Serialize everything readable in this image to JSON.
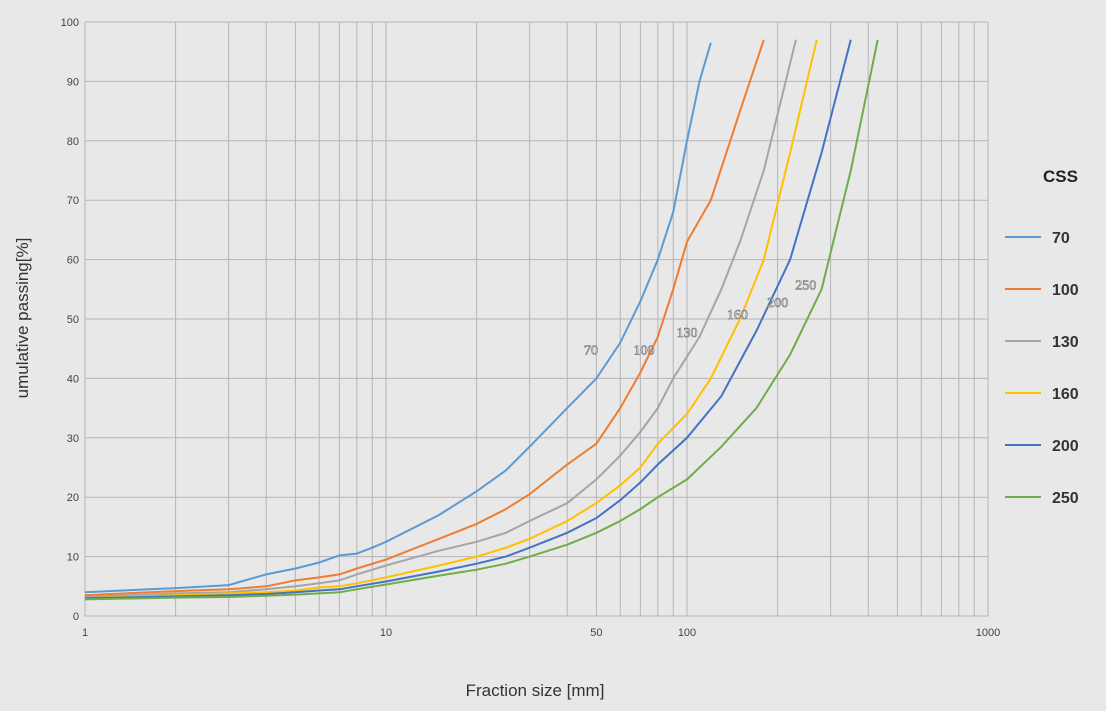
{
  "chart_data": {
    "type": "line",
    "title": "",
    "xlabel": "Fraction size  [mm]",
    "ylabel": "umulative passing[%]",
    "x_scale": "log",
    "xlim": [
      1,
      1000
    ],
    "ylim": [
      0,
      100
    ],
    "x_ticks": [
      {
        "value": 1,
        "label": "1"
      },
      {
        "value": 10,
        "label": "10"
      },
      {
        "value": 50,
        "label": "50"
      },
      {
        "value": 100,
        "label": "100"
      },
      {
        "value": 1000,
        "label": "1000"
      }
    ],
    "y_ticks": [
      "0",
      "10",
      "20",
      "30",
      "40",
      "50",
      "60",
      "70",
      "80",
      "90",
      "100"
    ],
    "grid": true,
    "legend": {
      "title": "CSS",
      "position": "right"
    },
    "series": [
      {
        "name": "70",
        "color": "#5b9bd5",
        "label_at": [
          48,
          44
        ],
        "points": [
          [
            1,
            4
          ],
          [
            2,
            4.7
          ],
          [
            3,
            5.2
          ],
          [
            4,
            7
          ],
          [
            5,
            8
          ],
          [
            6,
            9
          ],
          [
            7,
            10.2
          ],
          [
            8,
            10.5
          ],
          [
            9,
            11.5
          ],
          [
            10,
            12.5
          ],
          [
            15,
            17
          ],
          [
            20,
            21
          ],
          [
            25,
            24.5
          ],
          [
            30,
            28.5
          ],
          [
            40,
            35
          ],
          [
            50,
            40
          ],
          [
            60,
            46
          ],
          [
            70,
            53
          ],
          [
            80,
            60
          ],
          [
            90,
            68
          ],
          [
            100,
            80
          ],
          [
            110,
            90
          ],
          [
            120,
            96.5
          ]
        ]
      },
      {
        "name": "100",
        "color": "#ed7d31",
        "label_at": [
          72,
          44
        ],
        "points": [
          [
            1,
            3.5
          ],
          [
            2,
            4.2
          ],
          [
            3,
            4.5
          ],
          [
            4,
            5
          ],
          [
            5,
            6
          ],
          [
            6,
            6.5
          ],
          [
            7,
            7
          ],
          [
            8,
            8
          ],
          [
            10,
            9.5
          ],
          [
            15,
            13
          ],
          [
            20,
            15.5
          ],
          [
            25,
            18
          ],
          [
            30,
            20.5
          ],
          [
            40,
            25.5
          ],
          [
            50,
            29
          ],
          [
            60,
            35
          ],
          [
            70,
            41
          ],
          [
            80,
            47
          ],
          [
            90,
            55
          ],
          [
            100,
            63
          ],
          [
            120,
            70
          ],
          [
            150,
            85
          ],
          [
            180,
            97
          ]
        ]
      },
      {
        "name": "130",
        "color": "#a5a5a5",
        "label_at": [
          100,
          47
        ],
        "points": [
          [
            1,
            3.2
          ],
          [
            2,
            3.8
          ],
          [
            3,
            4
          ],
          [
            4,
            4.5
          ],
          [
            5,
            5
          ],
          [
            6,
            5.5
          ],
          [
            7,
            6
          ],
          [
            8,
            7
          ],
          [
            10,
            8.5
          ],
          [
            15,
            11
          ],
          [
            20,
            12.5
          ],
          [
            25,
            14
          ],
          [
            30,
            16
          ],
          [
            40,
            19
          ],
          [
            50,
            23
          ],
          [
            60,
            27
          ],
          [
            70,
            31
          ],
          [
            80,
            35
          ],
          [
            90,
            40
          ],
          [
            110,
            47
          ],
          [
            130,
            55
          ],
          [
            150,
            63
          ],
          [
            180,
            75
          ],
          [
            230,
            97
          ]
        ]
      },
      {
        "name": "160",
        "color": "#ffc000",
        "label_at": [
          147,
          50
        ],
        "points": [
          [
            1,
            3
          ],
          [
            2,
            3.5
          ],
          [
            3,
            3.8
          ],
          [
            4,
            4
          ],
          [
            5,
            4.3
          ],
          [
            6,
            4.8
          ],
          [
            7,
            5
          ],
          [
            8,
            5.5
          ],
          [
            10,
            6.5
          ],
          [
            15,
            8.5
          ],
          [
            20,
            10
          ],
          [
            25,
            11.5
          ],
          [
            30,
            13
          ],
          [
            40,
            16
          ],
          [
            50,
            19
          ],
          [
            60,
            22
          ],
          [
            70,
            25
          ],
          [
            80,
            29
          ],
          [
            100,
            34
          ],
          [
            120,
            40
          ],
          [
            150,
            50
          ],
          [
            180,
            60
          ],
          [
            220,
            78
          ],
          [
            270,
            97
          ]
        ]
      },
      {
        "name": "200",
        "color": "#4472c4",
        "label_at": [
          200,
          52
        ],
        "points": [
          [
            1,
            3
          ],
          [
            2,
            3.3
          ],
          [
            3,
            3.5
          ],
          [
            4,
            3.7
          ],
          [
            5,
            4
          ],
          [
            6,
            4.3
          ],
          [
            7,
            4.5
          ],
          [
            8,
            5
          ],
          [
            10,
            5.8
          ],
          [
            15,
            7.5
          ],
          [
            20,
            8.8
          ],
          [
            25,
            10
          ],
          [
            30,
            11.5
          ],
          [
            40,
            14
          ],
          [
            50,
            16.5
          ],
          [
            60,
            19.5
          ],
          [
            70,
            22.5
          ],
          [
            80,
            25.5
          ],
          [
            100,
            30
          ],
          [
            130,
            37
          ],
          [
            170,
            48
          ],
          [
            220,
            60
          ],
          [
            280,
            78
          ],
          [
            350,
            97
          ]
        ]
      },
      {
        "name": "250",
        "color": "#70ad47",
        "label_at": [
          248,
          55
        ],
        "points": [
          [
            1,
            2.8
          ],
          [
            2,
            3.1
          ],
          [
            3,
            3.2
          ],
          [
            4,
            3.4
          ],
          [
            5,
            3.6
          ],
          [
            6,
            3.8
          ],
          [
            7,
            4
          ],
          [
            8,
            4.5
          ],
          [
            10,
            5.3
          ],
          [
            15,
            6.8
          ],
          [
            20,
            7.8
          ],
          [
            25,
            8.8
          ],
          [
            30,
            10
          ],
          [
            40,
            12
          ],
          [
            50,
            14
          ],
          [
            60,
            16
          ],
          [
            70,
            18
          ],
          [
            80,
            20
          ],
          [
            100,
            23
          ],
          [
            130,
            28.5
          ],
          [
            170,
            35
          ],
          [
            220,
            44
          ],
          [
            280,
            55
          ],
          [
            350,
            75
          ],
          [
            430,
            97
          ]
        ]
      }
    ]
  }
}
